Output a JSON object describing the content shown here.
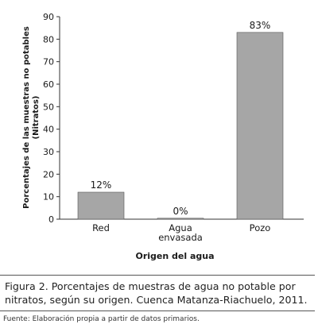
{
  "chart_data": {
    "type": "bar",
    "categories": [
      "Red",
      "Agua\nenvasada",
      "Pozo"
    ],
    "values": [
      12,
      0,
      83
    ],
    "data_labels": [
      "12%",
      "0%",
      "83%"
    ],
    "xlabel": "Origen del agua",
    "ylabel_lines": [
      "Porcentajes de las muestras no potables",
      "(Nitratos)"
    ],
    "ylim": [
      0,
      90
    ],
    "yticks": [
      0,
      10,
      20,
      30,
      40,
      50,
      60,
      70,
      80,
      90
    ],
    "grid": false,
    "bar_color": "#a6a6a6"
  },
  "caption": "Figura 2. Porcentajes de muestras de agua no potable por nitratos, según su origen. Cuenca Matanza-Riachuelo, 2011.",
  "source": "Fuente: Elaboración propia a partir de datos primarios."
}
